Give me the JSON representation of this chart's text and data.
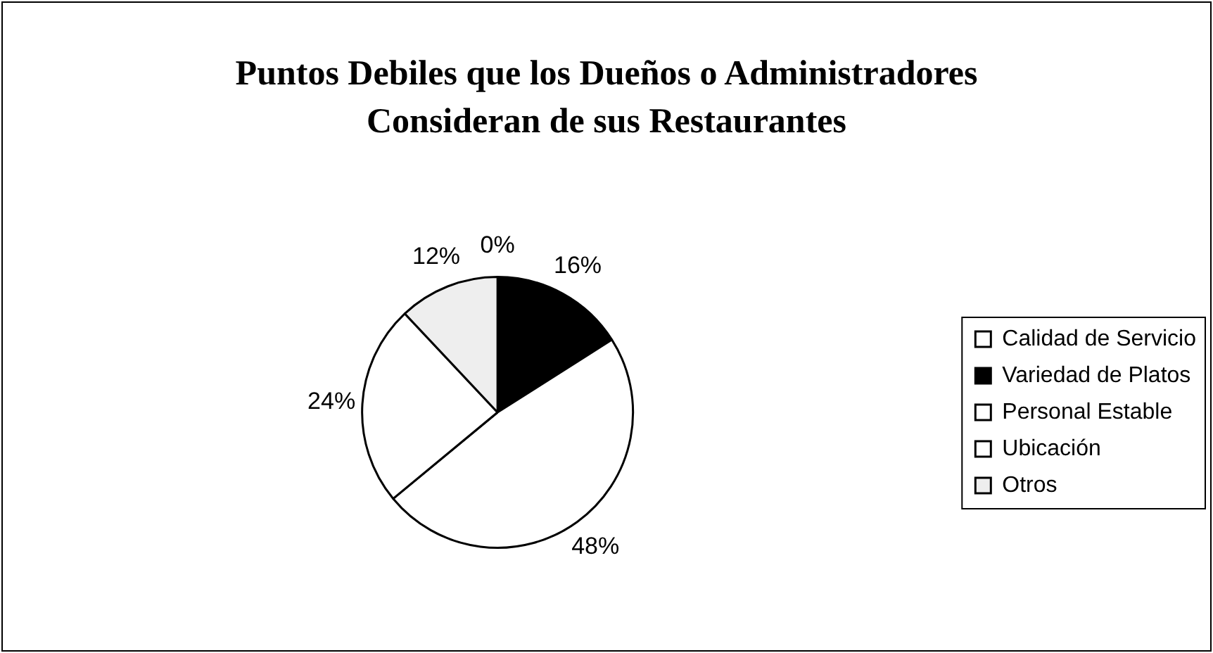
{
  "chart_data": {
    "type": "pie",
    "title": "Puntos Debiles que los Dueños o Administradores Consideran de sus Restaurantes",
    "categories": [
      "Calidad de Servicio",
      "Variedad de Platos",
      "Personal Estable",
      "Ubicación",
      "Otros"
    ],
    "values": [
      0,
      16,
      48,
      24,
      12
    ],
    "value_labels": [
      "0%",
      "16%",
      "48%",
      "24%",
      "12%"
    ],
    "colors": [
      "#ffffff",
      "#000000",
      "#ffffff",
      "#ffffff",
      "#eeeeee"
    ],
    "legend": "right"
  }
}
